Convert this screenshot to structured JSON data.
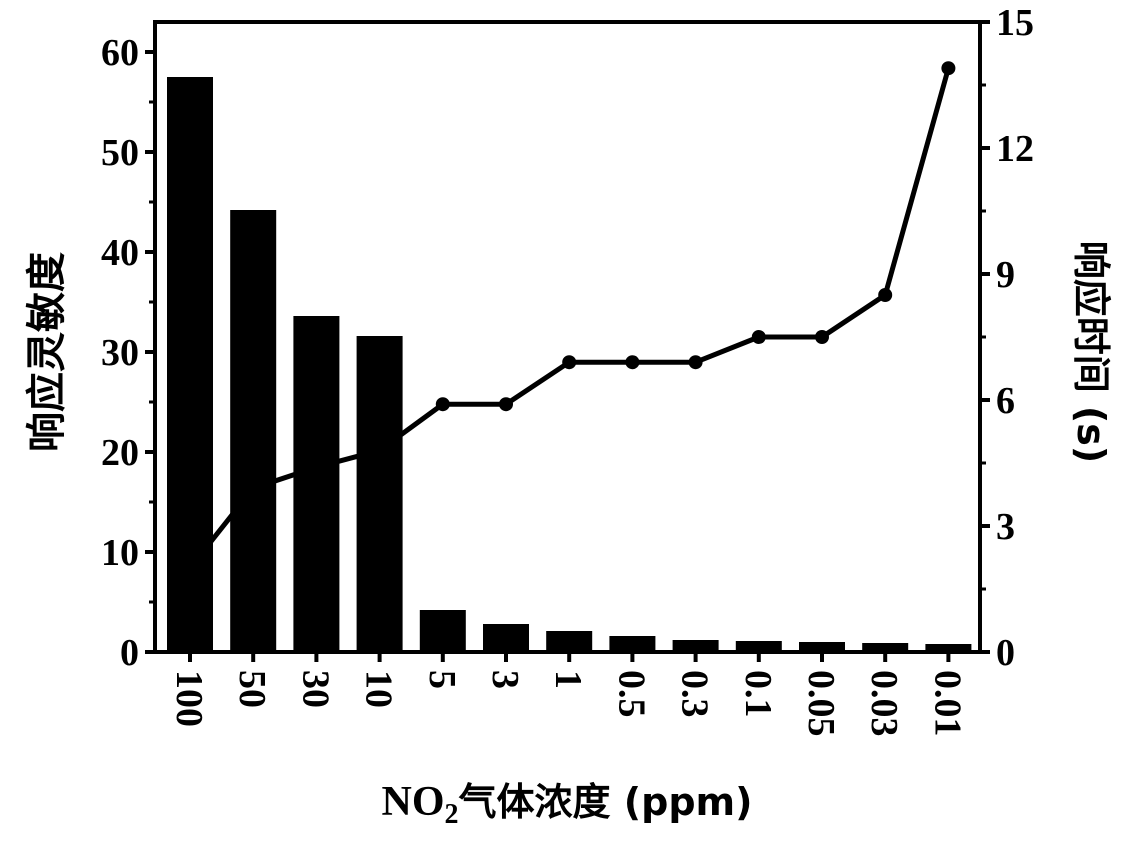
{
  "chart_data": {
    "type": "bar",
    "categories": [
      "100",
      "50",
      "30",
      "10",
      "5",
      "3",
      "1",
      "0.5",
      "0.3",
      "0.1",
      "0.05",
      "0.03",
      "0.01"
    ],
    "series": [
      {
        "name": "响应灵敏度",
        "type": "bar",
        "axis": "left",
        "values": [
          57.5,
          44.2,
          33.6,
          31.6,
          4.2,
          2.8,
          2.1,
          1.6,
          1.2,
          1.1,
          1.0,
          0.9,
          0.8
        ]
      },
      {
        "name": "响应时间 (s)",
        "type": "line",
        "axis": "right",
        "values": [
          2.0,
          3.9,
          4.4,
          4.8,
          5.9,
          5.9,
          6.9,
          6.9,
          6.9,
          7.5,
          7.5,
          8.5,
          13.9
        ],
        "markers_from_index": 4
      }
    ],
    "xlabel_main": "NO",
    "xlabel_sub": "2",
    "xlabel_rest": "气体浓度 (ppm)",
    "ylabel": "响应灵敏度",
    "y2label": "响应时间 (s)",
    "ylim": [
      0,
      60
    ],
    "y2lim": [
      0,
      15
    ],
    "yticks": [
      "0",
      "10",
      "20",
      "30",
      "40",
      "50",
      "60"
    ],
    "y2ticks": [
      "0",
      "3",
      "6",
      "9",
      "12",
      "15"
    ],
    "colors": {
      "bar": "#000000",
      "line": "#000000"
    }
  }
}
